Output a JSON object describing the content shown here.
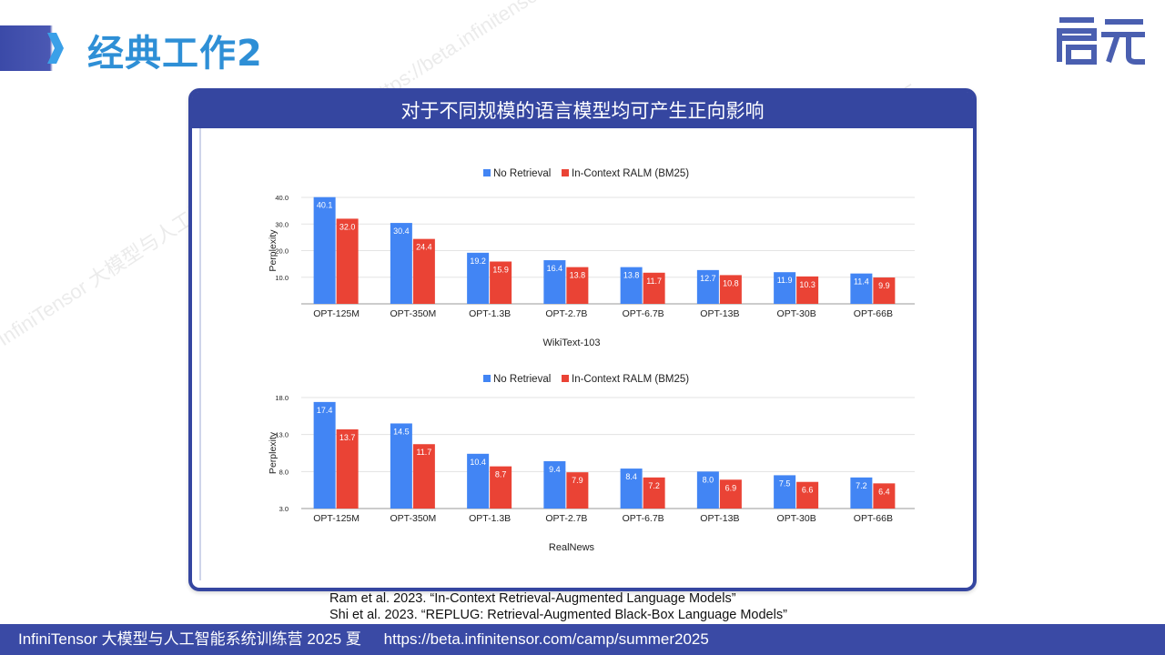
{
  "slide": {
    "title": "经典工作2",
    "logo_text": "启元",
    "card_title": "对于不同规模的语言模型均可产生正向影响"
  },
  "references": [
    "Ram et al. 2023. “In-Context Retrieval-Augmented Language Models”",
    "Shi et al. 2023. “REPLUG: Retrieval-Augmented Black-Box Language Models”"
  ],
  "footer": {
    "left": "InfiniTensor 大模型与人工智能系统训练营 2025 夏",
    "right": "https://beta.infinitensor.com/camp/summer2025"
  },
  "watermark": "InfiniTensor 大模型与人工智能系统训练营 2025夏 https://beta.infinitensor.com/camp/summer2025",
  "colors": {
    "no_retrieval": "#4285f4",
    "ralm": "#ea4335",
    "brand": "#3546a0",
    "title": "#2e8fd6"
  },
  "chart_data": [
    {
      "type": "bar",
      "title": "",
      "xlabel": "WikiText-103",
      "ylabel": "Perplexity",
      "ylim": [
        0,
        40
      ],
      "yticks": [
        "10.0",
        "20.0",
        "30.0",
        "40.0"
      ],
      "ytick_values": [
        10,
        20,
        30,
        40
      ],
      "legend_position": "top-center",
      "grid": true,
      "categories": [
        "OPT-125M",
        "OPT-350M",
        "OPT-1.3B",
        "OPT-2.7B",
        "OPT-6.7B",
        "OPT-13B",
        "OPT-30B",
        "OPT-66B"
      ],
      "series": [
        {
          "name": "No Retrieval",
          "values": [
            40.1,
            30.4,
            19.2,
            16.4,
            13.8,
            12.7,
            11.9,
            11.4
          ]
        },
        {
          "name": "In-Context RALM (BM25)",
          "values": [
            32.0,
            24.4,
            15.9,
            13.8,
            11.7,
            10.8,
            10.3,
            9.9
          ]
        }
      ]
    },
    {
      "type": "bar",
      "title": "",
      "xlabel": "RealNews",
      "ylabel": "Perplexity",
      "ylim": [
        3,
        18
      ],
      "yticks": [
        "3.0",
        "8.0",
        "13.0",
        "18.0"
      ],
      "ytick_values": [
        3,
        8,
        13,
        18
      ],
      "legend_position": "top-center",
      "grid": true,
      "categories": [
        "OPT-125M",
        "OPT-350M",
        "OPT-1.3B",
        "OPT-2.7B",
        "OPT-6.7B",
        "OPT-13B",
        "OPT-30B",
        "OPT-66B"
      ],
      "series": [
        {
          "name": "No Retrieval",
          "values": [
            17.4,
            14.5,
            10.4,
            9.4,
            8.4,
            8.0,
            7.5,
            7.2
          ]
        },
        {
          "name": "In-Context RALM (BM25)",
          "values": [
            13.7,
            11.7,
            8.7,
            7.9,
            7.2,
            6.9,
            6.6,
            6.4
          ]
        }
      ]
    }
  ]
}
